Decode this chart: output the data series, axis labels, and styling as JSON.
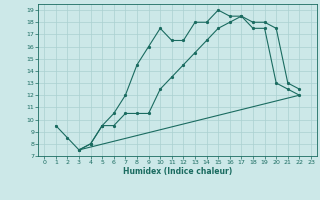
{
  "title": "",
  "xlabel": "Humidex (Indice chaleur)",
  "bg_color": "#cce8e8",
  "line_color": "#1a6b60",
  "grid_color": "#aad0d0",
  "xlim": [
    -0.5,
    23.5
  ],
  "ylim": [
    7,
    19.5
  ],
  "yticks": [
    7,
    8,
    9,
    10,
    11,
    12,
    13,
    14,
    15,
    16,
    17,
    18,
    19
  ],
  "xticks": [
    0,
    1,
    2,
    3,
    4,
    5,
    6,
    7,
    8,
    9,
    10,
    11,
    12,
    13,
    14,
    15,
    16,
    17,
    18,
    19,
    20,
    21,
    22,
    23
  ],
  "line1_x": [
    1,
    2,
    3,
    4,
    5,
    6,
    7,
    8,
    9,
    10,
    11,
    12,
    13,
    14,
    15,
    16,
    17,
    18,
    19,
    20,
    21,
    22
  ],
  "line1_y": [
    9.5,
    8.5,
    7.5,
    8.0,
    9.5,
    10.5,
    12.0,
    14.5,
    16.0,
    17.5,
    16.5,
    16.5,
    18.0,
    18.0,
    19.0,
    18.5,
    18.5,
    17.5,
    17.5,
    13.0,
    12.5,
    12.0
  ],
  "line2_x": [
    3,
    4,
    5,
    6,
    7,
    8,
    9,
    10,
    11,
    12,
    13,
    14,
    15,
    16,
    17,
    18,
    19,
    20,
    21,
    22
  ],
  "line2_y": [
    7.5,
    8.0,
    9.5,
    9.5,
    10.5,
    10.5,
    10.5,
    12.5,
    13.5,
    14.5,
    15.5,
    16.5,
    17.5,
    18.0,
    18.5,
    18.0,
    18.0,
    17.5,
    13.0,
    12.5
  ],
  "line3_x": [
    3,
    22
  ],
  "line3_y": [
    7.5,
    12.0
  ]
}
